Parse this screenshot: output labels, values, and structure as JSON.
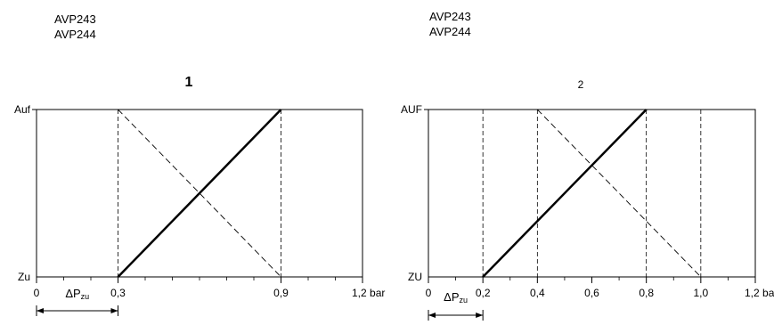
{
  "models_left": [
    "AVP243",
    "AVP244"
  ],
  "models_right": [
    "AVP243",
    "AVP244"
  ],
  "chart_data": [
    {
      "type": "line",
      "title": "1",
      "xlabel": "",
      "ylabel": "",
      "xlim": [
        0,
        1.2
      ],
      "x_unit": "bar",
      "y_labels": {
        "low": "Zu",
        "high": "Auf"
      },
      "x_ticks": [
        {
          "value": 0,
          "label": "0"
        },
        {
          "value": 0.3,
          "label": "0,3"
        },
        {
          "value": 0.9,
          "label": "0,9"
        },
        {
          "value": 1.2,
          "label": "1,2 bar"
        }
      ],
      "minor_ticks": [
        0.1,
        0.2,
        0.4,
        0.5,
        0.6,
        0.7,
        0.8,
        1.0,
        1.1
      ],
      "vertical_dashed": [
        0.3,
        0.9
      ],
      "series": [
        {
          "style": "solid",
          "x": [
            0.3,
            0.9
          ],
          "y": [
            0,
            1
          ]
        },
        {
          "style": "dashed",
          "x": [
            0.3,
            0.9
          ],
          "y": [
            1,
            0
          ]
        }
      ],
      "delta_label": "ΔP",
      "delta_sub": "zu",
      "delta_range": [
        0,
        0.3
      ]
    },
    {
      "type": "line",
      "title": "2",
      "xlabel": "",
      "ylabel": "",
      "xlim": [
        0,
        1.2
      ],
      "x_unit": "bar",
      "y_labels": {
        "low": "ZU",
        "high": "AUF"
      },
      "x_ticks": [
        {
          "value": 0,
          "label": "0"
        },
        {
          "value": 0.2,
          "label": "0,2"
        },
        {
          "value": 0.4,
          "label": "0,4"
        },
        {
          "value": 0.6,
          "label": "0,6"
        },
        {
          "value": 0.8,
          "label": "0,8"
        },
        {
          "value": 1.0,
          "label": "1,0"
        },
        {
          "value": 1.2,
          "label": "1,2 bar"
        }
      ],
      "minor_ticks": [
        0.1,
        0.3,
        0.5,
        0.7,
        0.9,
        1.1
      ],
      "vertical_dashed": [
        0.2,
        0.4,
        0.8,
        1.0
      ],
      "series": [
        {
          "style": "solid",
          "x": [
            0.2,
            0.8
          ],
          "y": [
            0,
            1
          ]
        },
        {
          "style": "dashed",
          "x": [
            0.4,
            1.0
          ],
          "y": [
            1,
            0
          ]
        }
      ],
      "delta_label": "ΔP",
      "delta_sub": "zu",
      "delta_range": [
        0,
        0.2
      ]
    }
  ]
}
